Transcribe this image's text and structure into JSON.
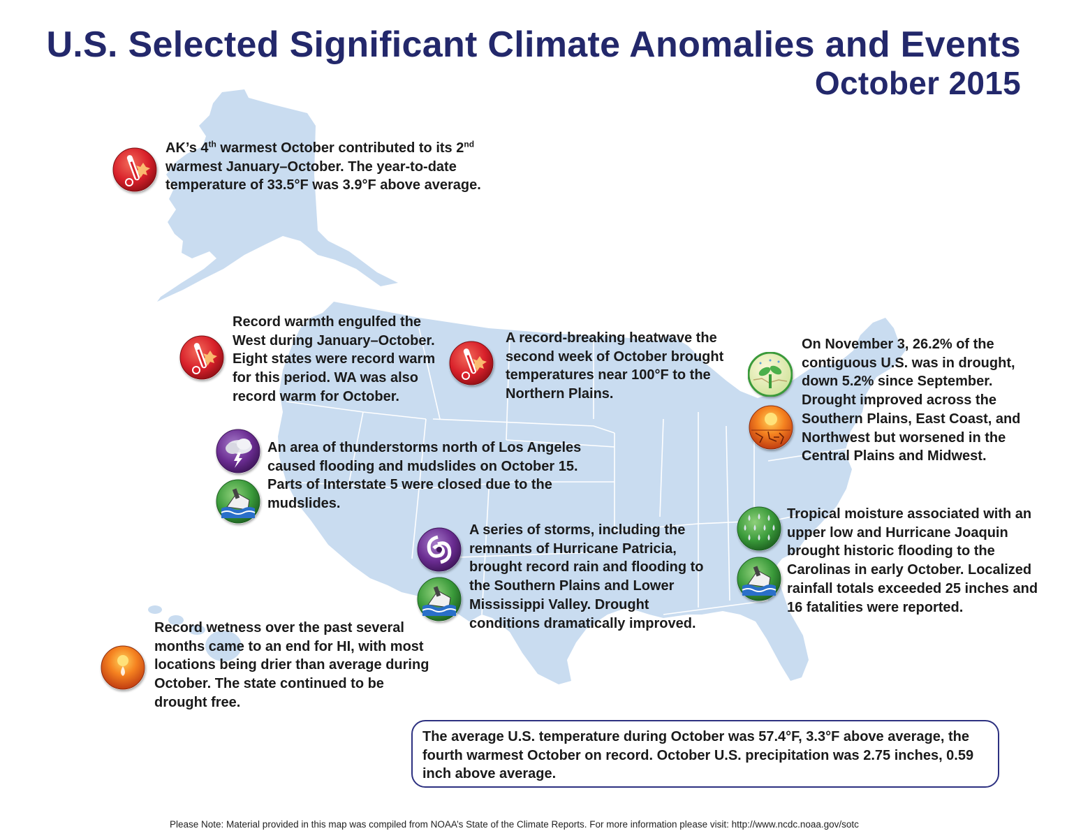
{
  "title": {
    "line1": "U.S. Selected Significant Climate Anomalies and Events",
    "line2": "October 2015"
  },
  "colors": {
    "title": "#23286b",
    "map_fill": "#c9dcf0",
    "state_lines": "#ffffff",
    "box_border": "#2d3180",
    "icon_heat": "#d8202a",
    "icon_storm": "#6a2c91",
    "icon_green": "#3a9a3a",
    "icon_dry": "#e8501e"
  },
  "notes": {
    "alaska": {
      "p1": "AK’s 4",
      "sup1": "th",
      "p2": " warmest October contributed to its 2",
      "sup2": "nd",
      "p3": " warmest January–October. The year-to-date temperature of 33.5°F was 3.9°F above average.",
      "icons": [
        "thermometer-heat-icon"
      ]
    },
    "west": {
      "text": "Record warmth engulfed the West during January–October. Eight states were record warm for this period. WA was also record warm for October.",
      "icons": [
        "thermometer-heat-icon"
      ]
    },
    "northern_plains": {
      "text": "A record-breaking heatwave the second week of October brought temperatures near 100°F to the Northern Plains.",
      "icons": [
        "thermometer-heat-icon"
      ]
    },
    "drought": {
      "text": "On November 3, 26.2% of the contiguous U.S. was in drought, down 5.2% since September. Drought improved across the Southern Plains, East Coast, and Northwest but worsened in the Central Plains and Midwest.",
      "icons": [
        "drought-improvement-icon",
        "drought-worsening-icon"
      ]
    },
    "los_angeles": {
      "text": "An area of thunderstorms north of Los Angeles caused flooding and mudslides on October 15. Parts of Interstate 5 were closed due to the mudslides.",
      "icons": [
        "thunderstorm-icon",
        "flood-icon"
      ]
    },
    "southern_plains": {
      "text": "A series of storms, including the remnants of Hurricane Patricia, brought record rain and flooding to the Southern Plains and Lower Mississippi Valley.  Drought conditions dramatically improved.",
      "icons": [
        "hurricane-icon",
        "flood-icon"
      ]
    },
    "carolinas": {
      "text": "Tropical moisture associated with an upper low and Hurricane Joaquin brought historic flooding to the Carolinas in early October. Localized rainfall totals exceeded 25 inches and 16 fatalities were reported.",
      "icons": [
        "heavy-rain-icon",
        "flood-icon"
      ]
    },
    "hawaii": {
      "text": "Record wetness over the past several months came to an end for HI, with most locations being drier than average during October. The state continued to be drought free.",
      "icons": [
        "dry-sun-icon"
      ]
    }
  },
  "summary": "The average U.S. temperature during October was 57.4°F, 3.3°F above average, the fourth warmest October on record. October U.S. precipitation was 2.75 inches, 0.59 inch above average.",
  "footer": "Please Note: Material provided in this map was compiled from NOAA’s State of the Climate Reports. For more information please visit: http://www.ncdc.noaa.gov/sotc"
}
